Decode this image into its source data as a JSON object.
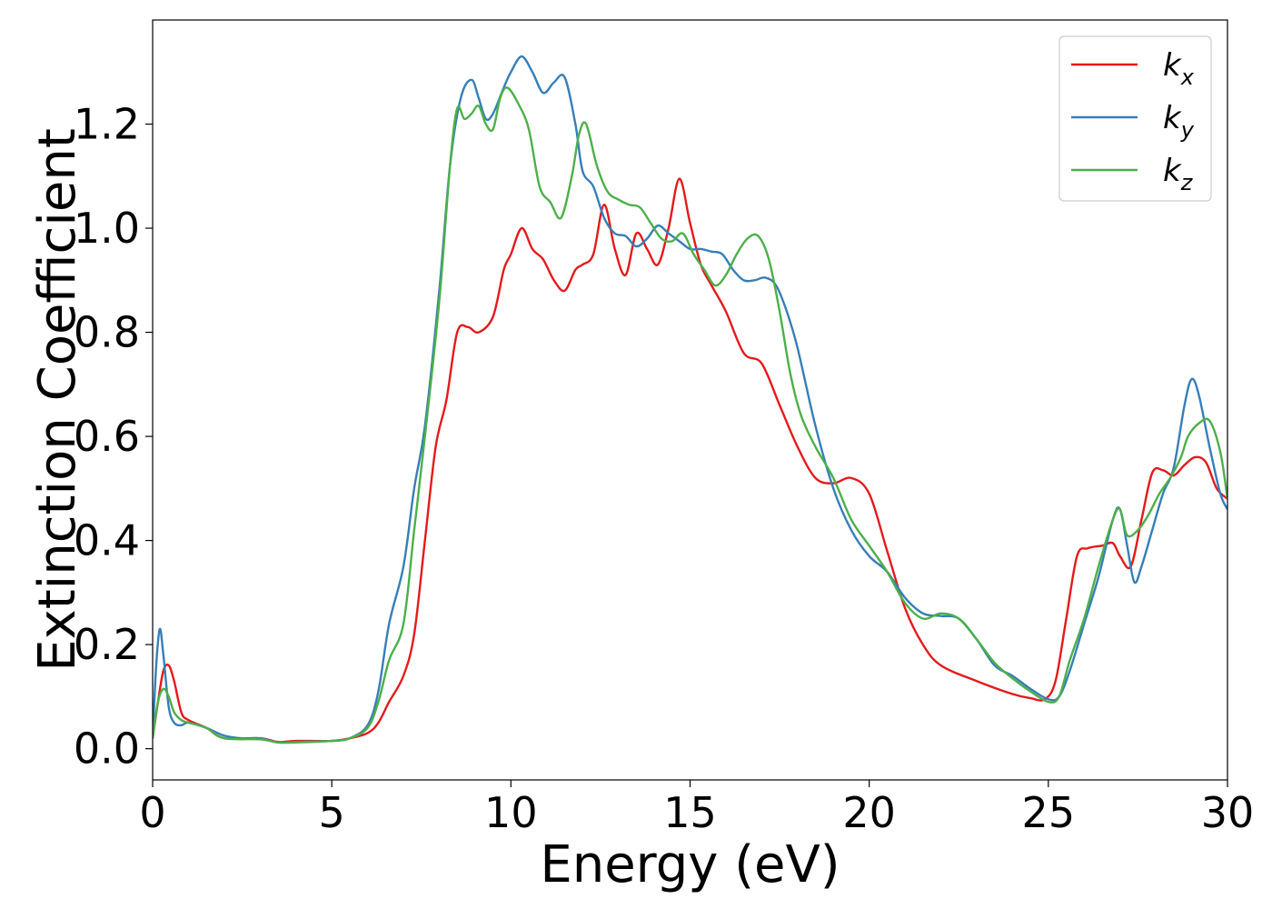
{
  "chart_data": {
    "type": "line",
    "xlabel": "Energy (eV)",
    "ylabel": "Extinction Coefficient",
    "xlim": [
      0,
      30
    ],
    "ylim": [
      -0.06,
      1.4
    ],
    "xticks": [
      0,
      5,
      10,
      15,
      20,
      25,
      30
    ],
    "xtick_labels": [
      "0",
      "5",
      "10",
      "15",
      "20",
      "25",
      "30"
    ],
    "yticks": [
      0.0,
      0.2,
      0.4,
      0.6,
      0.8,
      1.0,
      1.2
    ],
    "ytick_labels": [
      "0.0",
      "0.2",
      "0.4",
      "0.6",
      "0.8",
      "1.0",
      "1.2"
    ],
    "grid": false,
    "legend_position": "top-right",
    "series": [
      {
        "name": "k",
        "subscript": "x",
        "color": "#e41a1c",
        "x": [
          0,
          0.15,
          0.3,
          0.45,
          0.6,
          0.8,
          1.0,
          1.5,
          2.0,
          3.0,
          3.5,
          4.0,
          5.0,
          5.5,
          6.0,
          6.3,
          6.6,
          7.0,
          7.3,
          7.6,
          7.9,
          8.2,
          8.5,
          8.8,
          9.1,
          9.5,
          9.8,
          10.0,
          10.3,
          10.6,
          10.9,
          11.2,
          11.5,
          11.8,
          12.0,
          12.3,
          12.6,
          12.9,
          13.2,
          13.5,
          13.8,
          14.1,
          14.4,
          14.7,
          15.0,
          15.3,
          15.6,
          16.0,
          16.5,
          17.0,
          17.5,
          18.0,
          18.5,
          19.0,
          19.5,
          20.0,
          20.5,
          21.0,
          21.5,
          22.0,
          23.0,
          24.0,
          24.5,
          24.9,
          25.2,
          25.5,
          25.8,
          26.1,
          26.5,
          26.8,
          27.0,
          27.3,
          27.6,
          27.9,
          28.2,
          28.5,
          28.8,
          29.1,
          29.4,
          29.7,
          30.0
        ],
        "y": [
          0.02,
          0.09,
          0.15,
          0.16,
          0.13,
          0.07,
          0.055,
          0.04,
          0.02,
          0.02,
          0.013,
          0.015,
          0.015,
          0.02,
          0.03,
          0.05,
          0.09,
          0.14,
          0.22,
          0.4,
          0.58,
          0.67,
          0.8,
          0.81,
          0.8,
          0.83,
          0.92,
          0.95,
          1.0,
          0.96,
          0.94,
          0.9,
          0.88,
          0.92,
          0.93,
          0.95,
          1.045,
          0.96,
          0.91,
          0.99,
          0.96,
          0.93,
          1.0,
          1.095,
          1.01,
          0.93,
          0.89,
          0.84,
          0.76,
          0.74,
          0.66,
          0.58,
          0.52,
          0.51,
          0.52,
          0.49,
          0.38,
          0.27,
          0.2,
          0.16,
          0.13,
          0.105,
          0.097,
          0.095,
          0.13,
          0.25,
          0.37,
          0.385,
          0.39,
          0.395,
          0.37,
          0.35,
          0.44,
          0.53,
          0.535,
          0.525,
          0.545,
          0.56,
          0.55,
          0.5,
          0.48
        ]
      },
      {
        "name": "k",
        "subscript": "y",
        "color": "#377eb8",
        "x": [
          0,
          0.1,
          0.2,
          0.3,
          0.45,
          0.6,
          0.8,
          1.0,
          1.5,
          2.0,
          2.5,
          3.0,
          3.5,
          4.0,
          5.0,
          5.5,
          6.0,
          6.3,
          6.6,
          7.0,
          7.3,
          7.6,
          8.0,
          8.3,
          8.6,
          8.9,
          9.1,
          9.3,
          9.5,
          9.8,
          10.0,
          10.3,
          10.6,
          10.9,
          11.2,
          11.5,
          11.8,
          12.0,
          12.3,
          12.6,
          12.9,
          13.2,
          13.5,
          13.8,
          14.1,
          14.4,
          14.7,
          15.0,
          15.3,
          15.6,
          15.9,
          16.2,
          16.5,
          16.8,
          17.1,
          17.4,
          17.7,
          18.0,
          18.5,
          19.0,
          19.5,
          20.0,
          20.5,
          21.0,
          21.5,
          22.0,
          22.5,
          23.0,
          23.5,
          24.0,
          24.5,
          25.0,
          25.3,
          25.6,
          26.0,
          26.4,
          26.8,
          27.0,
          27.2,
          27.4,
          27.6,
          27.9,
          28.2,
          28.5,
          28.8,
          29.0,
          29.2,
          29.5,
          29.8,
          30.0
        ],
        "y": [
          0.02,
          0.16,
          0.23,
          0.18,
          0.08,
          0.05,
          0.045,
          0.05,
          0.04,
          0.025,
          0.02,
          0.02,
          0.012,
          0.013,
          0.015,
          0.02,
          0.045,
          0.11,
          0.24,
          0.35,
          0.5,
          0.62,
          0.88,
          1.12,
          1.25,
          1.285,
          1.25,
          1.21,
          1.22,
          1.27,
          1.3,
          1.33,
          1.3,
          1.26,
          1.28,
          1.29,
          1.2,
          1.11,
          1.08,
          1.02,
          0.99,
          0.985,
          0.965,
          0.98,
          1.005,
          0.99,
          0.975,
          0.96,
          0.96,
          0.955,
          0.95,
          0.92,
          0.9,
          0.9,
          0.905,
          0.89,
          0.84,
          0.77,
          0.62,
          0.5,
          0.42,
          0.37,
          0.34,
          0.29,
          0.26,
          0.255,
          0.25,
          0.21,
          0.16,
          0.14,
          0.115,
          0.095,
          0.1,
          0.15,
          0.24,
          0.33,
          0.44,
          0.46,
          0.39,
          0.32,
          0.35,
          0.42,
          0.49,
          0.54,
          0.66,
          0.71,
          0.68,
          0.58,
          0.49,
          0.46
        ]
      },
      {
        "name": "k",
        "subscript": "z",
        "color": "#4daf4a",
        "x": [
          0,
          0.15,
          0.3,
          0.45,
          0.6,
          0.8,
          1.0,
          1.5,
          2.0,
          3.0,
          3.5,
          4.0,
          5.0,
          5.5,
          6.0,
          6.3,
          6.6,
          7.0,
          7.3,
          7.6,
          8.0,
          8.3,
          8.5,
          8.7,
          8.9,
          9.1,
          9.3,
          9.5,
          9.7,
          9.9,
          10.2,
          10.5,
          10.8,
          11.1,
          11.4,
          11.7,
          11.9,
          12.1,
          12.4,
          12.7,
          13.0,
          13.3,
          13.6,
          13.9,
          14.2,
          14.5,
          14.8,
          15.1,
          15.4,
          15.7,
          16.0,
          16.3,
          16.6,
          16.9,
          17.2,
          17.5,
          17.8,
          18.1,
          18.5,
          19.0,
          19.5,
          20.0,
          20.5,
          21.0,
          21.5,
          22.0,
          22.5,
          23.0,
          23.5,
          24.0,
          24.5,
          25.0,
          25.3,
          25.6,
          26.0,
          26.4,
          26.8,
          27.0,
          27.2,
          27.5,
          27.8,
          28.1,
          28.4,
          28.7,
          28.9,
          29.2,
          29.5,
          29.8,
          30.0
        ],
        "y": [
          0.02,
          0.09,
          0.115,
          0.1,
          0.07,
          0.055,
          0.05,
          0.04,
          0.02,
          0.018,
          0.012,
          0.012,
          0.015,
          0.02,
          0.04,
          0.09,
          0.17,
          0.24,
          0.42,
          0.6,
          0.86,
          1.12,
          1.23,
          1.21,
          1.22,
          1.235,
          1.2,
          1.19,
          1.25,
          1.27,
          1.24,
          1.19,
          1.08,
          1.05,
          1.02,
          1.1,
          1.18,
          1.2,
          1.12,
          1.07,
          1.055,
          1.045,
          1.04,
          1.01,
          0.98,
          0.975,
          0.99,
          0.95,
          0.92,
          0.89,
          0.91,
          0.95,
          0.98,
          0.985,
          0.94,
          0.84,
          0.72,
          0.64,
          0.58,
          0.52,
          0.44,
          0.39,
          0.34,
          0.28,
          0.25,
          0.26,
          0.25,
          0.21,
          0.165,
          0.135,
          0.11,
          0.09,
          0.1,
          0.17,
          0.25,
          0.35,
          0.44,
          0.46,
          0.41,
          0.42,
          0.45,
          0.49,
          0.52,
          0.56,
          0.6,
          0.625,
          0.63,
          0.57,
          0.48
        ]
      }
    ]
  }
}
